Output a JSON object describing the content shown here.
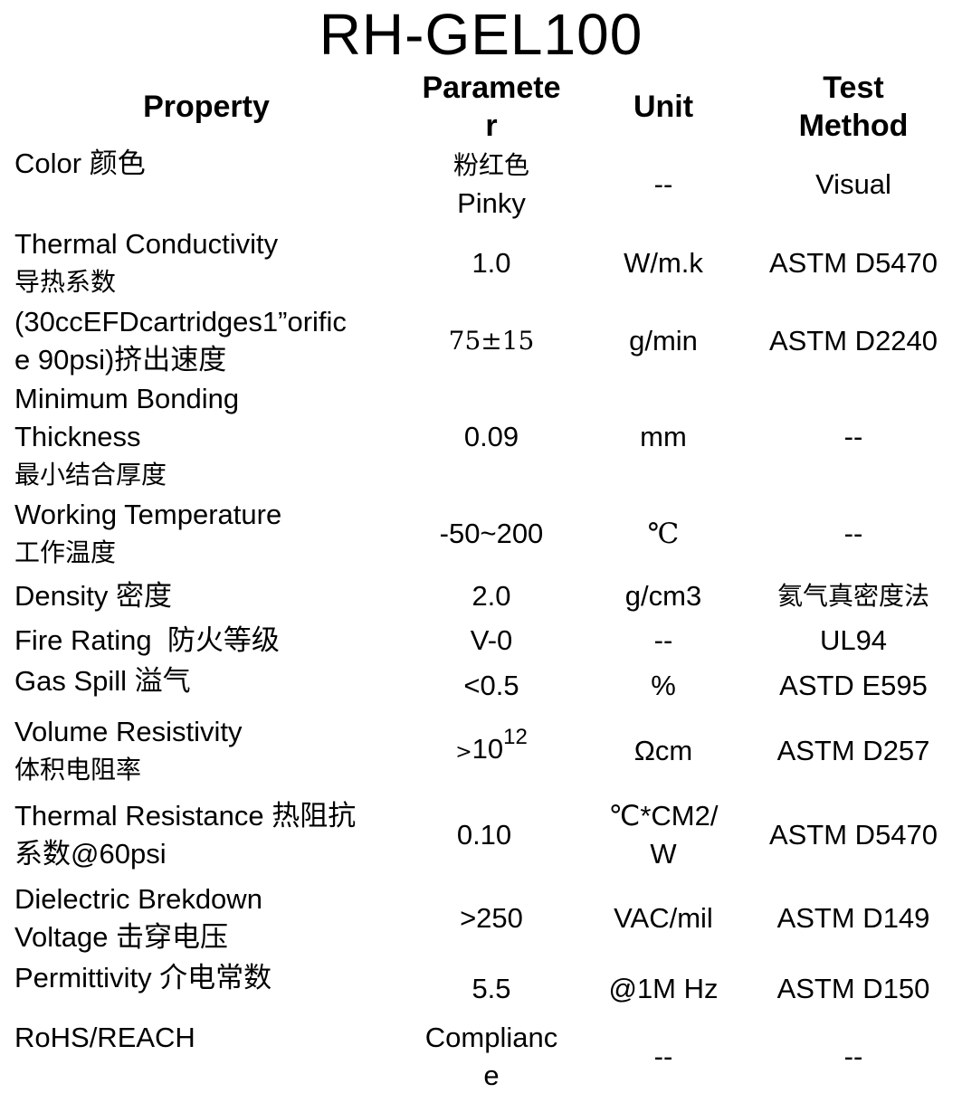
{
  "title": "RH-GEL100",
  "headers": {
    "property": "Property",
    "parameter": [
      "Paramete",
      "r"
    ],
    "unit": "Unit",
    "test_method": [
      "Test",
      "Method"
    ]
  },
  "rows": [
    {
      "property": [
        "Color 颜色"
      ],
      "parameter": [
        "粉红色",
        "Pinky"
      ],
      "unit": [
        "--"
      ],
      "method": [
        "Visual"
      ]
    },
    {
      "property": [
        "Thermal Conductivity",
        "导热系数"
      ],
      "parameter": [
        "1.0"
      ],
      "unit": [
        "W/m.k"
      ],
      "method": [
        "ASTM D5470"
      ]
    },
    {
      "property": [
        "(30ccEFDcartridges1”orific",
        "e 90psi)挤出速度"
      ],
      "parameter": [
        "75±15"
      ],
      "unit": [
        "g/min"
      ],
      "method": [
        "ASTM D2240"
      ]
    },
    {
      "property": [
        "Minimum Bonding",
        "Thickness",
        "最小结合厚度"
      ],
      "parameter": [
        "0.09"
      ],
      "unit": [
        "mm"
      ],
      "method": [
        "--"
      ]
    },
    {
      "property": [
        "Working Temperature",
        "工作温度"
      ],
      "parameter": [
        "-50~200"
      ],
      "unit": [
        "℃"
      ],
      "method": [
        "--"
      ]
    },
    {
      "property": [
        "Density 密度"
      ],
      "parameter": [
        "2.0"
      ],
      "unit": [
        "g/cm3"
      ],
      "method": [
        "氦气真密度法"
      ]
    },
    {
      "property": [
        "Fire Rating  防火等级"
      ],
      "parameter": [
        "V-0"
      ],
      "unit": [
        "--"
      ],
      "method": [
        "UL94"
      ]
    },
    {
      "property": [
        "Gas Spill 溢气"
      ],
      "parameter": [
        "<0.5"
      ],
      "unit": [
        "%"
      ],
      "method": [
        "ASTD E595"
      ]
    },
    {
      "property": [
        "Volume Resistivity",
        "体积电阻率"
      ],
      "parameter_prefix": ">",
      "parameter_base": "10",
      "parameter_exp": "12",
      "unit": [
        "Ωcm"
      ],
      "method": [
        "ASTM D257"
      ]
    },
    {
      "property": [
        "Thermal Resistance 热阻抗",
        "系数@60psi"
      ],
      "parameter": [
        "0.10"
      ],
      "unit": [
        "℃*CM2/",
        "W"
      ],
      "method": [
        "ASTM D5470"
      ]
    },
    {
      "property": [
        "Dielectric Brekdown",
        "Voltage 击穿电压"
      ],
      "parameter": [
        ">250"
      ],
      "unit": [
        "VAC/mil"
      ],
      "method": [
        "ASTM D149"
      ]
    },
    {
      "property": [
        "Permittivity 介电常数"
      ],
      "parameter": [
        "5.5"
      ],
      "unit": [
        "@1M Hz"
      ],
      "method": [
        "ASTM D150"
      ]
    },
    {
      "property": [
        "RoHS/REACH"
      ],
      "parameter": [
        "Complianc",
        "e"
      ],
      "unit": [
        "--"
      ],
      "method": [
        "--"
      ]
    }
  ]
}
